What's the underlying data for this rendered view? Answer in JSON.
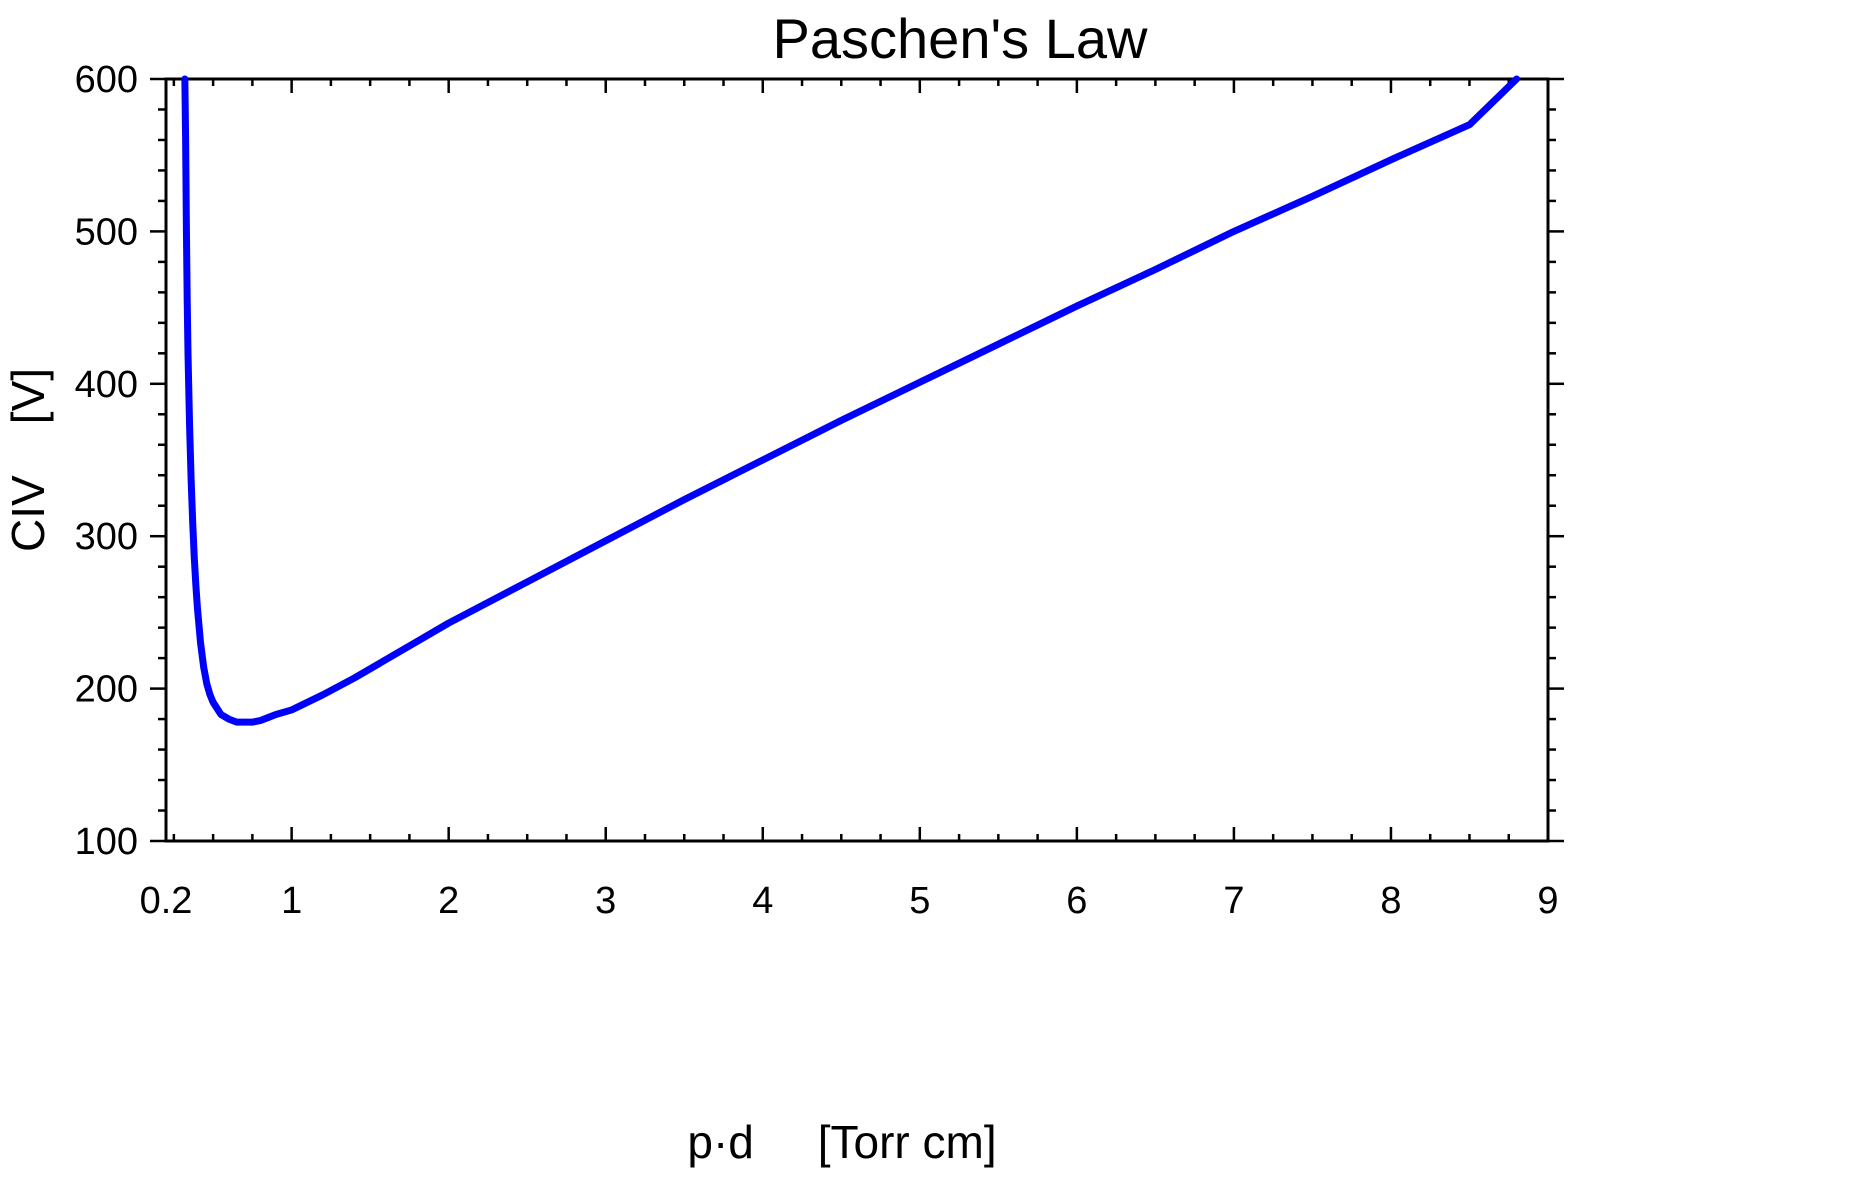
{
  "chart_data": {
    "type": "line",
    "title": "Paschen's Law",
    "xlabel": "p·d     [Torr cm]",
    "ylabel": "CIV    [V]",
    "xlim": [
      0.2,
      9
    ],
    "ylim": [
      100,
      600
    ],
    "x_ticks": [
      0.2,
      1,
      2,
      3,
      4,
      5,
      6,
      7,
      8,
      9
    ],
    "x_tick_labels": [
      "0.2",
      "1",
      "2",
      "3",
      "4",
      "5",
      "6",
      "7",
      "8",
      "9"
    ],
    "y_ticks": [
      100,
      200,
      300,
      400,
      500,
      600
    ],
    "y_tick_labels": [
      "100",
      "200",
      "300",
      "400",
      "500",
      "600"
    ],
    "x_minor_step": 0.25,
    "y_minor_step": 20,
    "grid": false,
    "legend": "none",
    "colors": {
      "curve": "#0000ff",
      "axes": "#000000"
    },
    "series": [
      {
        "x": [
          0.32,
          0.325,
          0.33,
          0.335,
          0.34,
          0.35,
          0.36,
          0.37,
          0.38,
          0.39,
          0.4,
          0.42,
          0.44,
          0.46,
          0.48,
          0.5,
          0.55,
          0.6,
          0.65,
          0.7,
          0.75,
          0.8,
          0.85,
          0.9,
          1.0,
          1.2,
          1.4,
          1.6,
          1.8,
          2.0,
          2.5,
          3.0,
          3.5,
          4.0,
          4.5,
          5.0,
          5.5,
          6.0,
          6.5,
          7.0,
          7.5,
          8.0,
          8.5,
          8.8
        ],
        "y": [
          600,
          560,
          500,
          455,
          420,
          373,
          337,
          309,
          286,
          268,
          253,
          230,
          214,
          203,
          196,
          191,
          183,
          180,
          178,
          178,
          178,
          179,
          181,
          183,
          186,
          196,
          207,
          219,
          231,
          243,
          270,
          297,
          324,
          350,
          376,
          401,
          426,
          451,
          475,
          500,
          523,
          547,
          570,
          600
        ]
      }
    ]
  }
}
